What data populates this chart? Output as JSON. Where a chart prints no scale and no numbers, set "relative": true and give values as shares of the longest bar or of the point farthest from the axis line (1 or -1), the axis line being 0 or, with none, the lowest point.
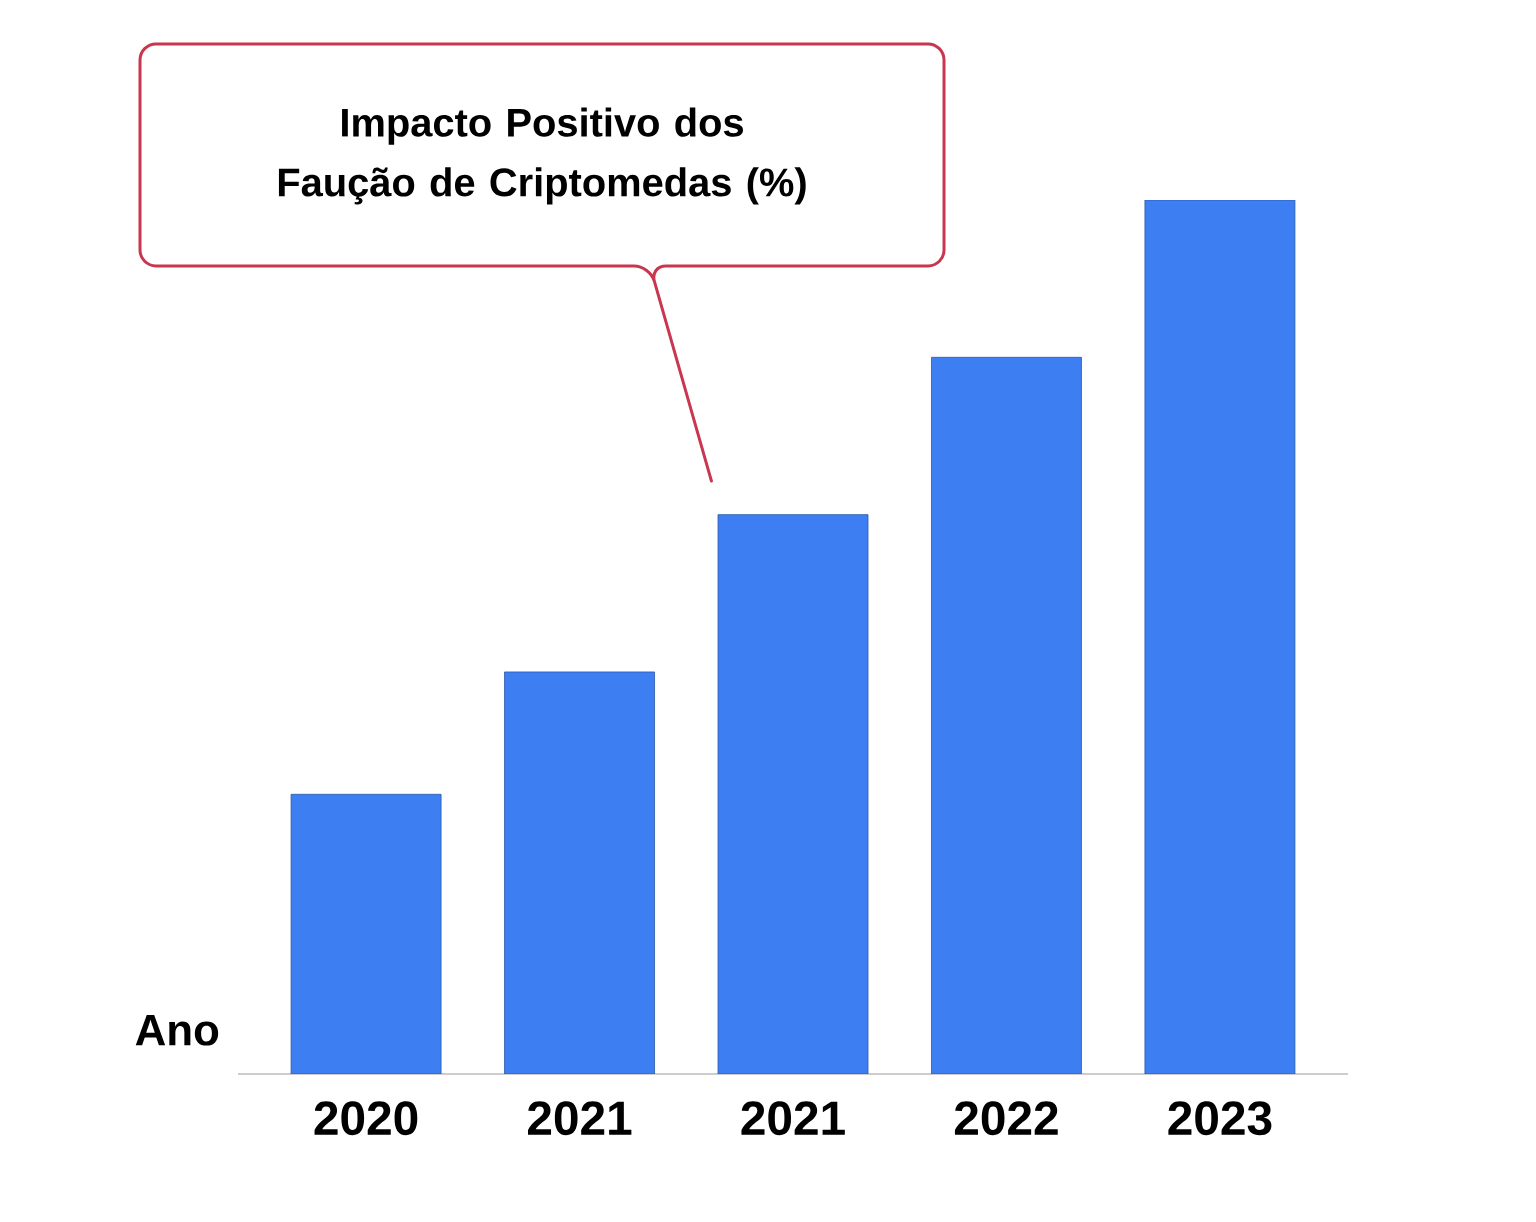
{
  "chart_data": {
    "type": "bar",
    "title": "Impacto Positivo dos Faução de Criptomedas (%)",
    "xlabel": "Ano",
    "categories": [
      "2020",
      "2021",
      "2021",
      "2022",
      "2023"
    ],
    "values": [
      0.32,
      0.46,
      0.64,
      0.82,
      1
    ],
    "color": "#3d7ef2",
    "relative": true
  }
}
